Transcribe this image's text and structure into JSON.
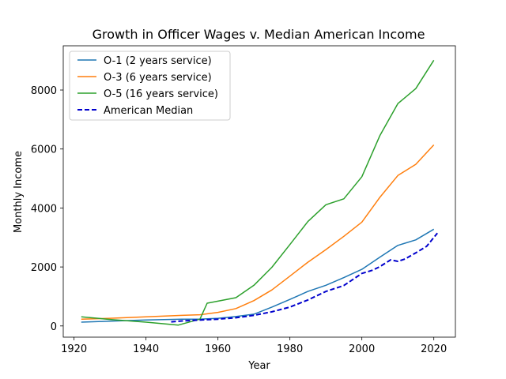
{
  "chart_data": {
    "type": "line",
    "title": "Growth in Officer Wages v. Median American Income",
    "xlabel": "Year",
    "ylabel": "Monthly Income",
    "xlim": [
      1917,
      2026
    ],
    "ylim": [
      -380,
      9500
    ],
    "xticks": [
      1920,
      1940,
      1960,
      1980,
      2000,
      2020
    ],
    "yticks": [
      0,
      2000,
      4000,
      6000,
      8000
    ],
    "grid": false,
    "legend_position": "upper-left",
    "series": [
      {
        "name": "O-1 (2 years service)",
        "color": "#1f77b4",
        "dash": "solid",
        "x": [
          1922,
          1930,
          1940,
          1950,
          1955,
          1960,
          1965,
          1970,
          1975,
          1980,
          1985,
          1990,
          1995,
          2000,
          2005,
          2010,
          2015,
          2020
        ],
        "y": [
          130,
          160,
          200,
          230,
          230,
          260,
          320,
          400,
          640,
          900,
          1170,
          1380,
          1640,
          1920,
          2330,
          2730,
          2920,
          3280
        ]
      },
      {
        "name": "O-3 (6 years service)",
        "color": "#ff7f0e",
        "dash": "solid",
        "x": [
          1922,
          1930,
          1940,
          1950,
          1955,
          1960,
          1965,
          1970,
          1975,
          1980,
          1985,
          1990,
          1995,
          2000,
          2005,
          2010,
          2015,
          2020
        ],
        "y": [
          230,
          260,
          310,
          360,
          380,
          460,
          590,
          860,
          1220,
          1690,
          2160,
          2590,
          3040,
          3520,
          4360,
          5100,
          5480,
          6140
        ]
      },
      {
        "name": "O-5 (16 years service)",
        "color": "#2ca02c",
        "dash": "solid",
        "x": [
          1922,
          1930,
          1940,
          1949,
          1955,
          1957,
          1960,
          1965,
          1970,
          1975,
          1980,
          1985,
          1990,
          1995,
          2000,
          2005,
          2010,
          2015,
          2020
        ],
        "y": [
          310,
          220,
          130,
          30,
          230,
          770,
          840,
          960,
          1380,
          1990,
          2760,
          3540,
          4110,
          4310,
          5060,
          6450,
          7540,
          8050,
          9010
        ]
      },
      {
        "name": "American Median",
        "color": "#0000cd",
        "dash": "dashed",
        "x": [
          1947,
          1950,
          1955,
          1960,
          1965,
          1970,
          1975,
          1980,
          1985,
          1990,
          1995,
          2000,
          2003,
          2005,
          2008,
          2010,
          2012,
          2015,
          2018,
          2021
        ],
        "y": [
          140,
          170,
          200,
          230,
          280,
          360,
          480,
          640,
          880,
          1170,
          1370,
          1780,
          1890,
          2010,
          2240,
          2190,
          2270,
          2480,
          2700,
          3150
        ]
      }
    ]
  }
}
